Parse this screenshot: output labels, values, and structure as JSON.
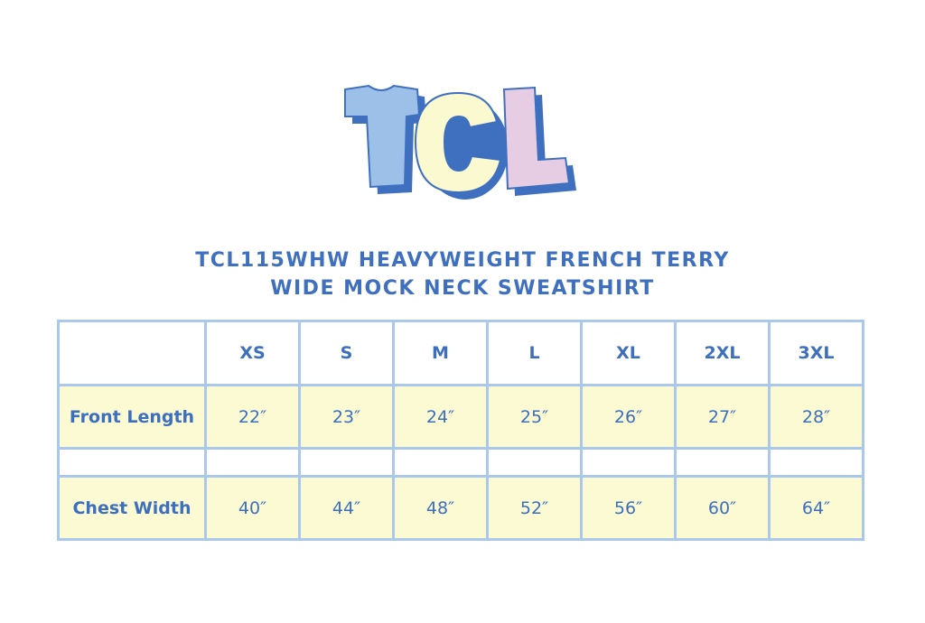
{
  "logo": {
    "text": "TCL",
    "colors": {
      "t": "#9dc0e8",
      "c": "#fbf9cf",
      "l": "#e6cde3",
      "shadow": "#3f70bf"
    }
  },
  "title": {
    "line1": "TCL115WHW HEAVYWEIGHT FRENCH TERRY",
    "line2": "WIDE MOCK NECK SWEATSHIRT"
  },
  "table": {
    "sizes": [
      "XS",
      "S",
      "M",
      "L",
      "XL",
      "2XL",
      "3XL"
    ],
    "rows": [
      {
        "label": "Front Length",
        "values": [
          "22″",
          "23″",
          "24″",
          "25″",
          "26″",
          "27″",
          "28″"
        ]
      },
      {
        "label": "Chest Width",
        "values": [
          "40″",
          "44″",
          "48″",
          "52″",
          "56″",
          "60″",
          "64″"
        ]
      }
    ]
  },
  "colors": {
    "text": "#3d6fbf",
    "border": "#a9c8ec",
    "row_fill": "#fbfad2"
  }
}
